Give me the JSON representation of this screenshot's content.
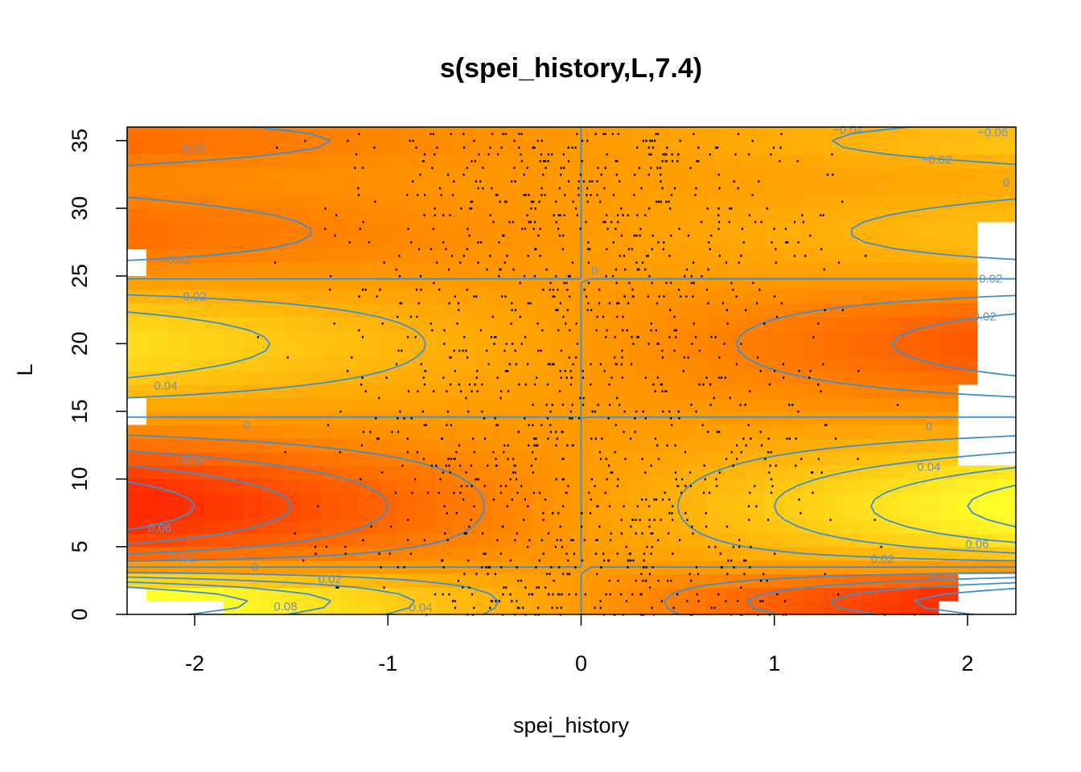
{
  "chart_data": {
    "type": "heatmap",
    "title": "s(spei_history,L,7.4)",
    "xlabel": "spei_history",
    "ylabel": "L",
    "xlim": [
      -2.35,
      2.25
    ],
    "ylim": [
      0,
      36
    ],
    "x_ticks": [
      "-2",
      "-1",
      "0",
      "1",
      "2"
    ],
    "y_ticks": [
      "0",
      "5",
      "10",
      "15",
      "20",
      "25",
      "30",
      "35"
    ],
    "colors": {
      "low": "#ff2a00",
      "mid": "#ff9a00",
      "high": "#ffff2a",
      "contour": "#3d8fd0",
      "points": "#000000"
    },
    "surface_model": "value(x,L) = x * sum of bands; bands at L=8 (0.04), L=20 (-0.025), L=28 (0.015), L=1 (-0.05), L=35 (0.015)",
    "contour_levels": [
      -0.08,
      -0.06,
      -0.04,
      -0.02,
      0,
      0.02,
      0.04,
      0.06,
      0.08
    ],
    "contour_labels": [
      {
        "text": "0.02",
        "x": -2.0,
        "y": 34.4
      },
      {
        "text": "−0.04",
        "x": 1.38,
        "y": 35.8
      },
      {
        "text": "−0.06",
        "x": 2.13,
        "y": 35.6
      },
      {
        "text": "−0.02",
        "x": 1.84,
        "y": 33.6
      },
      {
        "text": "0",
        "x": 2.2,
        "y": 31.9
      },
      {
        "text": "−0.02",
        "x": -2.1,
        "y": 26.2
      },
      {
        "text": "0",
        "x": 0.07,
        "y": 25.4
      },
      {
        "text": "0.02",
        "x": 2.12,
        "y": 24.8
      },
      {
        "text": "0.02",
        "x": -2.0,
        "y": 23.5
      },
      {
        "text": "−0.02",
        "x": 2.07,
        "y": 22.0
      },
      {
        "text": "0.04",
        "x": -2.15,
        "y": 16.9
      },
      {
        "text": "0",
        "x": -1.73,
        "y": 14.0
      },
      {
        "text": "0",
        "x": 1.8,
        "y": 13.9
      },
      {
        "text": "−0.04",
        "x": -2.02,
        "y": 11.4
      },
      {
        "text": "0.04",
        "x": 1.8,
        "y": 10.9
      },
      {
        "text": "0.06",
        "x": -2.18,
        "y": 6.4
      },
      {
        "text": "0.06",
        "x": 2.05,
        "y": 5.2
      },
      {
        "text": "−0.02",
        "x": -2.08,
        "y": 4.2
      },
      {
        "text": "0",
        "x": -1.69,
        "y": 3.5
      },
      {
        "text": "0.02",
        "x": 1.56,
        "y": 4.1
      },
      {
        "text": "0.02",
        "x": -1.3,
        "y": 2.6
      },
      {
        "text": "−0.02",
        "x": 1.86,
        "y": 2.8
      },
      {
        "text": "0.08",
        "x": -1.53,
        "y": 0.6
      },
      {
        "text": "0.04",
        "x": -0.83,
        "y": 0.5
      }
    ]
  }
}
